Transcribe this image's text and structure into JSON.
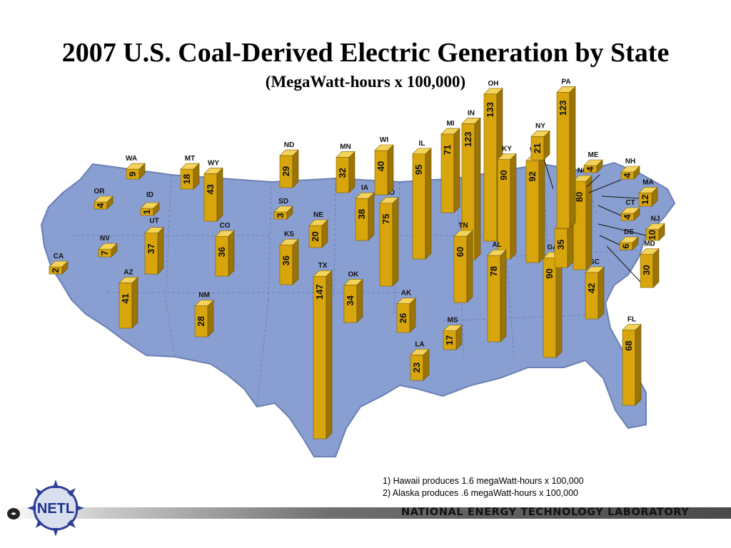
{
  "title": "2007 U.S. Coal-Derived Electric Generation by State",
  "subtitle": "(MegaWatt-hours x 100,000)",
  "notes": [
    "1) Hawaii produces 1.6 megaWatt-hours x 100,000",
    "2) Alaska produces .6 megaWatt-hours x 100,000"
  ],
  "footer": "NATIONAL ENERGY TECHNOLOGY LABORATORY",
  "logo_text": "NETL",
  "colors": {
    "map": "#8a9fd1",
    "bar_front": "#d8a60c",
    "bar_side": "#9a7406",
    "bar_top": "#f3d35a",
    "map_border": "#6b7fb3"
  },
  "chart_data": {
    "type": "bar",
    "title": "2007 U.S. Coal-Derived Electric Generation by State",
    "subtitle": "(MegaWatt-hours x 100,000)",
    "categories": [
      "WA",
      "MT",
      "OR",
      "ID",
      "WY",
      "CA",
      "NV",
      "UT",
      "CO",
      "AZ",
      "NM",
      "ND",
      "SD",
      "NE",
      "KS",
      "OK",
      "TX",
      "MN",
      "IA",
      "MO",
      "AK",
      "LA",
      "WI",
      "IL",
      "MI",
      "IN",
      "OH",
      "KY",
      "TN",
      "MS",
      "AL",
      "GA",
      "FL",
      "SC",
      "NC",
      "VA",
      "WV",
      "PA",
      "NY",
      "ME",
      "NH",
      "MA",
      "CT",
      "NJ",
      "DE",
      "MD"
    ],
    "values": [
      9,
      18,
      4,
      1,
      43,
      2,
      7,
      37,
      36,
      41,
      28,
      29,
      3,
      20,
      36,
      34,
      147,
      32,
      38,
      75,
      26,
      23,
      40,
      95,
      71,
      123,
      133,
      90,
      60,
      17,
      78,
      90,
      68,
      42,
      80,
      35,
      92,
      123,
      21,
      4,
      4,
      12,
      4,
      10,
      6,
      30
    ]
  }
}
